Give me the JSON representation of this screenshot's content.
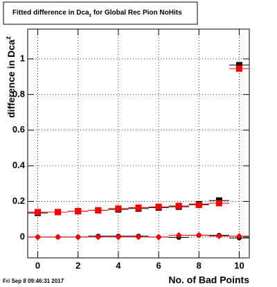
{
  "chart_data": {
    "type": "scatter",
    "title_parts": [
      "Fitted difference in Dca",
      "z",
      " for Global Rec Pion NoHits"
    ],
    "ylabel_parts": [
      "difference in Dca",
      "z"
    ],
    "xlabel": "No. of Bad Points",
    "footer": "Fri Sep  8 09:46:31 2017",
    "x": [
      0,
      1,
      2,
      3,
      4,
      5,
      6,
      7,
      8,
      9,
      10
    ],
    "series": [
      {
        "color": "#000000",
        "marker": "square",
        "xerr": 0.5,
        "values": [
          0.135,
          0.14,
          0.145,
          0.15,
          0.155,
          0.16,
          0.165,
          0.17,
          0.185,
          0.205,
          0.965
        ]
      },
      {
        "color": "#ff0000",
        "marker": "square",
        "xerr": 0.5,
        "values": [
          0.14,
          0.14,
          0.145,
          0.15,
          0.16,
          0.165,
          0.17,
          0.175,
          0.18,
          0.19,
          0.945
        ]
      },
      {
        "color": "#000000",
        "marker": "circle",
        "xerr": 0.5,
        "values": [
          0,
          0,
          0,
          0.005,
          0.005,
          0.005,
          0,
          -0.002,
          0.01,
          0.01,
          -0.005
        ]
      },
      {
        "color": "#ff0000",
        "marker": "diamond",
        "xerr": 0.5,
        "values": [
          0,
          0,
          0,
          0,
          0,
          0,
          0,
          0.01,
          0.01,
          0.005,
          0.005
        ]
      }
    ],
    "xlim": [
      -0.5,
      10.5
    ],
    "xticks": [
      0,
      2,
      4,
      6,
      8,
      10
    ],
    "ylim": [
      -0.117,
      1.167
    ],
    "yticks": [
      0,
      0.2,
      0.4,
      0.6,
      0.8,
      1
    ],
    "grid": true
  }
}
